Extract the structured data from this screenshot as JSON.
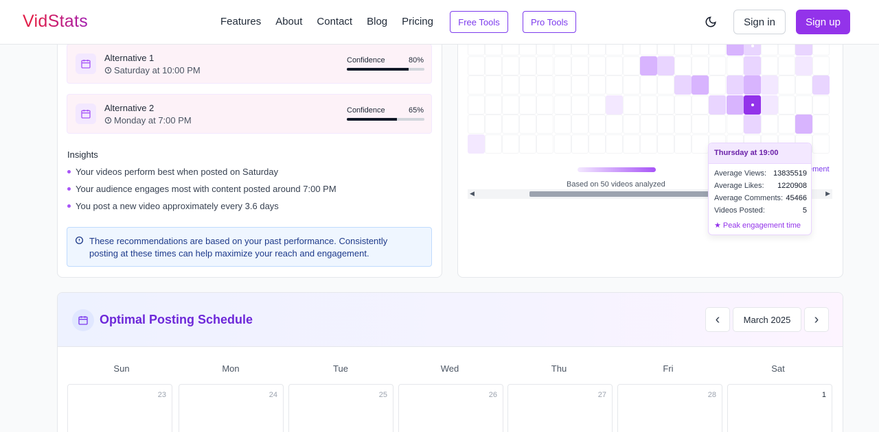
{
  "header": {
    "logo": {
      "first": "V",
      "rest": "idStats"
    },
    "nav": [
      "Features",
      "About",
      "Contact",
      "Blog",
      "Pricing"
    ],
    "free_tools": "Free Tools",
    "pro_tools": "Pro Tools",
    "sign_in": "Sign in",
    "sign_up": "Sign up"
  },
  "alternatives": [
    {
      "title": "Alternative 1",
      "time": "Saturday at 10:00 PM",
      "confidence_label": "Confidence",
      "confidence": "80%",
      "confidence_value": 0.8
    },
    {
      "title": "Alternative 2",
      "time": "Monday at 7:00 PM",
      "confidence_label": "Confidence",
      "confidence": "65%",
      "confidence_value": 0.65
    }
  ],
  "insights": {
    "title": "Insights",
    "items": [
      "Your videos perform best when posted on Saturday",
      "Your audience engages most with content posted around 7:00 PM",
      "You post a new video approximately every 3.6 days"
    ]
  },
  "note": "These recommendations are based on your past performance. Consistently posting at these times can help maximize your reach and engagement.",
  "heatmap": {
    "based_on": "Based on 50 videos analyzed",
    "legend_peak_partial": "ement",
    "colors": {
      "light": "#f3e8ff",
      "mid": "#e9d5ff",
      "strong": "#d8b4fe",
      "peak": "#9333ea"
    }
  },
  "tooltip": {
    "title": "Thursday at 19:00",
    "rows": [
      {
        "label": "Average Views:",
        "value": "13835519"
      },
      {
        "label": "Average Likes:",
        "value": "1220908"
      },
      {
        "label": "Average Comments:",
        "value": "45466"
      },
      {
        "label": "Videos Posted:",
        "value": "5"
      }
    ],
    "peak": "★ Peak engagement time"
  },
  "schedule": {
    "title": "Optimal Posting Schedule",
    "month": "March 2025",
    "prev": "‹",
    "next": "›",
    "days": [
      "Sun",
      "Mon",
      "Tue",
      "Wed",
      "Thu",
      "Fri",
      "Sat"
    ],
    "dates": [
      "23",
      "24",
      "25",
      "26",
      "27",
      "28",
      "1"
    ]
  }
}
